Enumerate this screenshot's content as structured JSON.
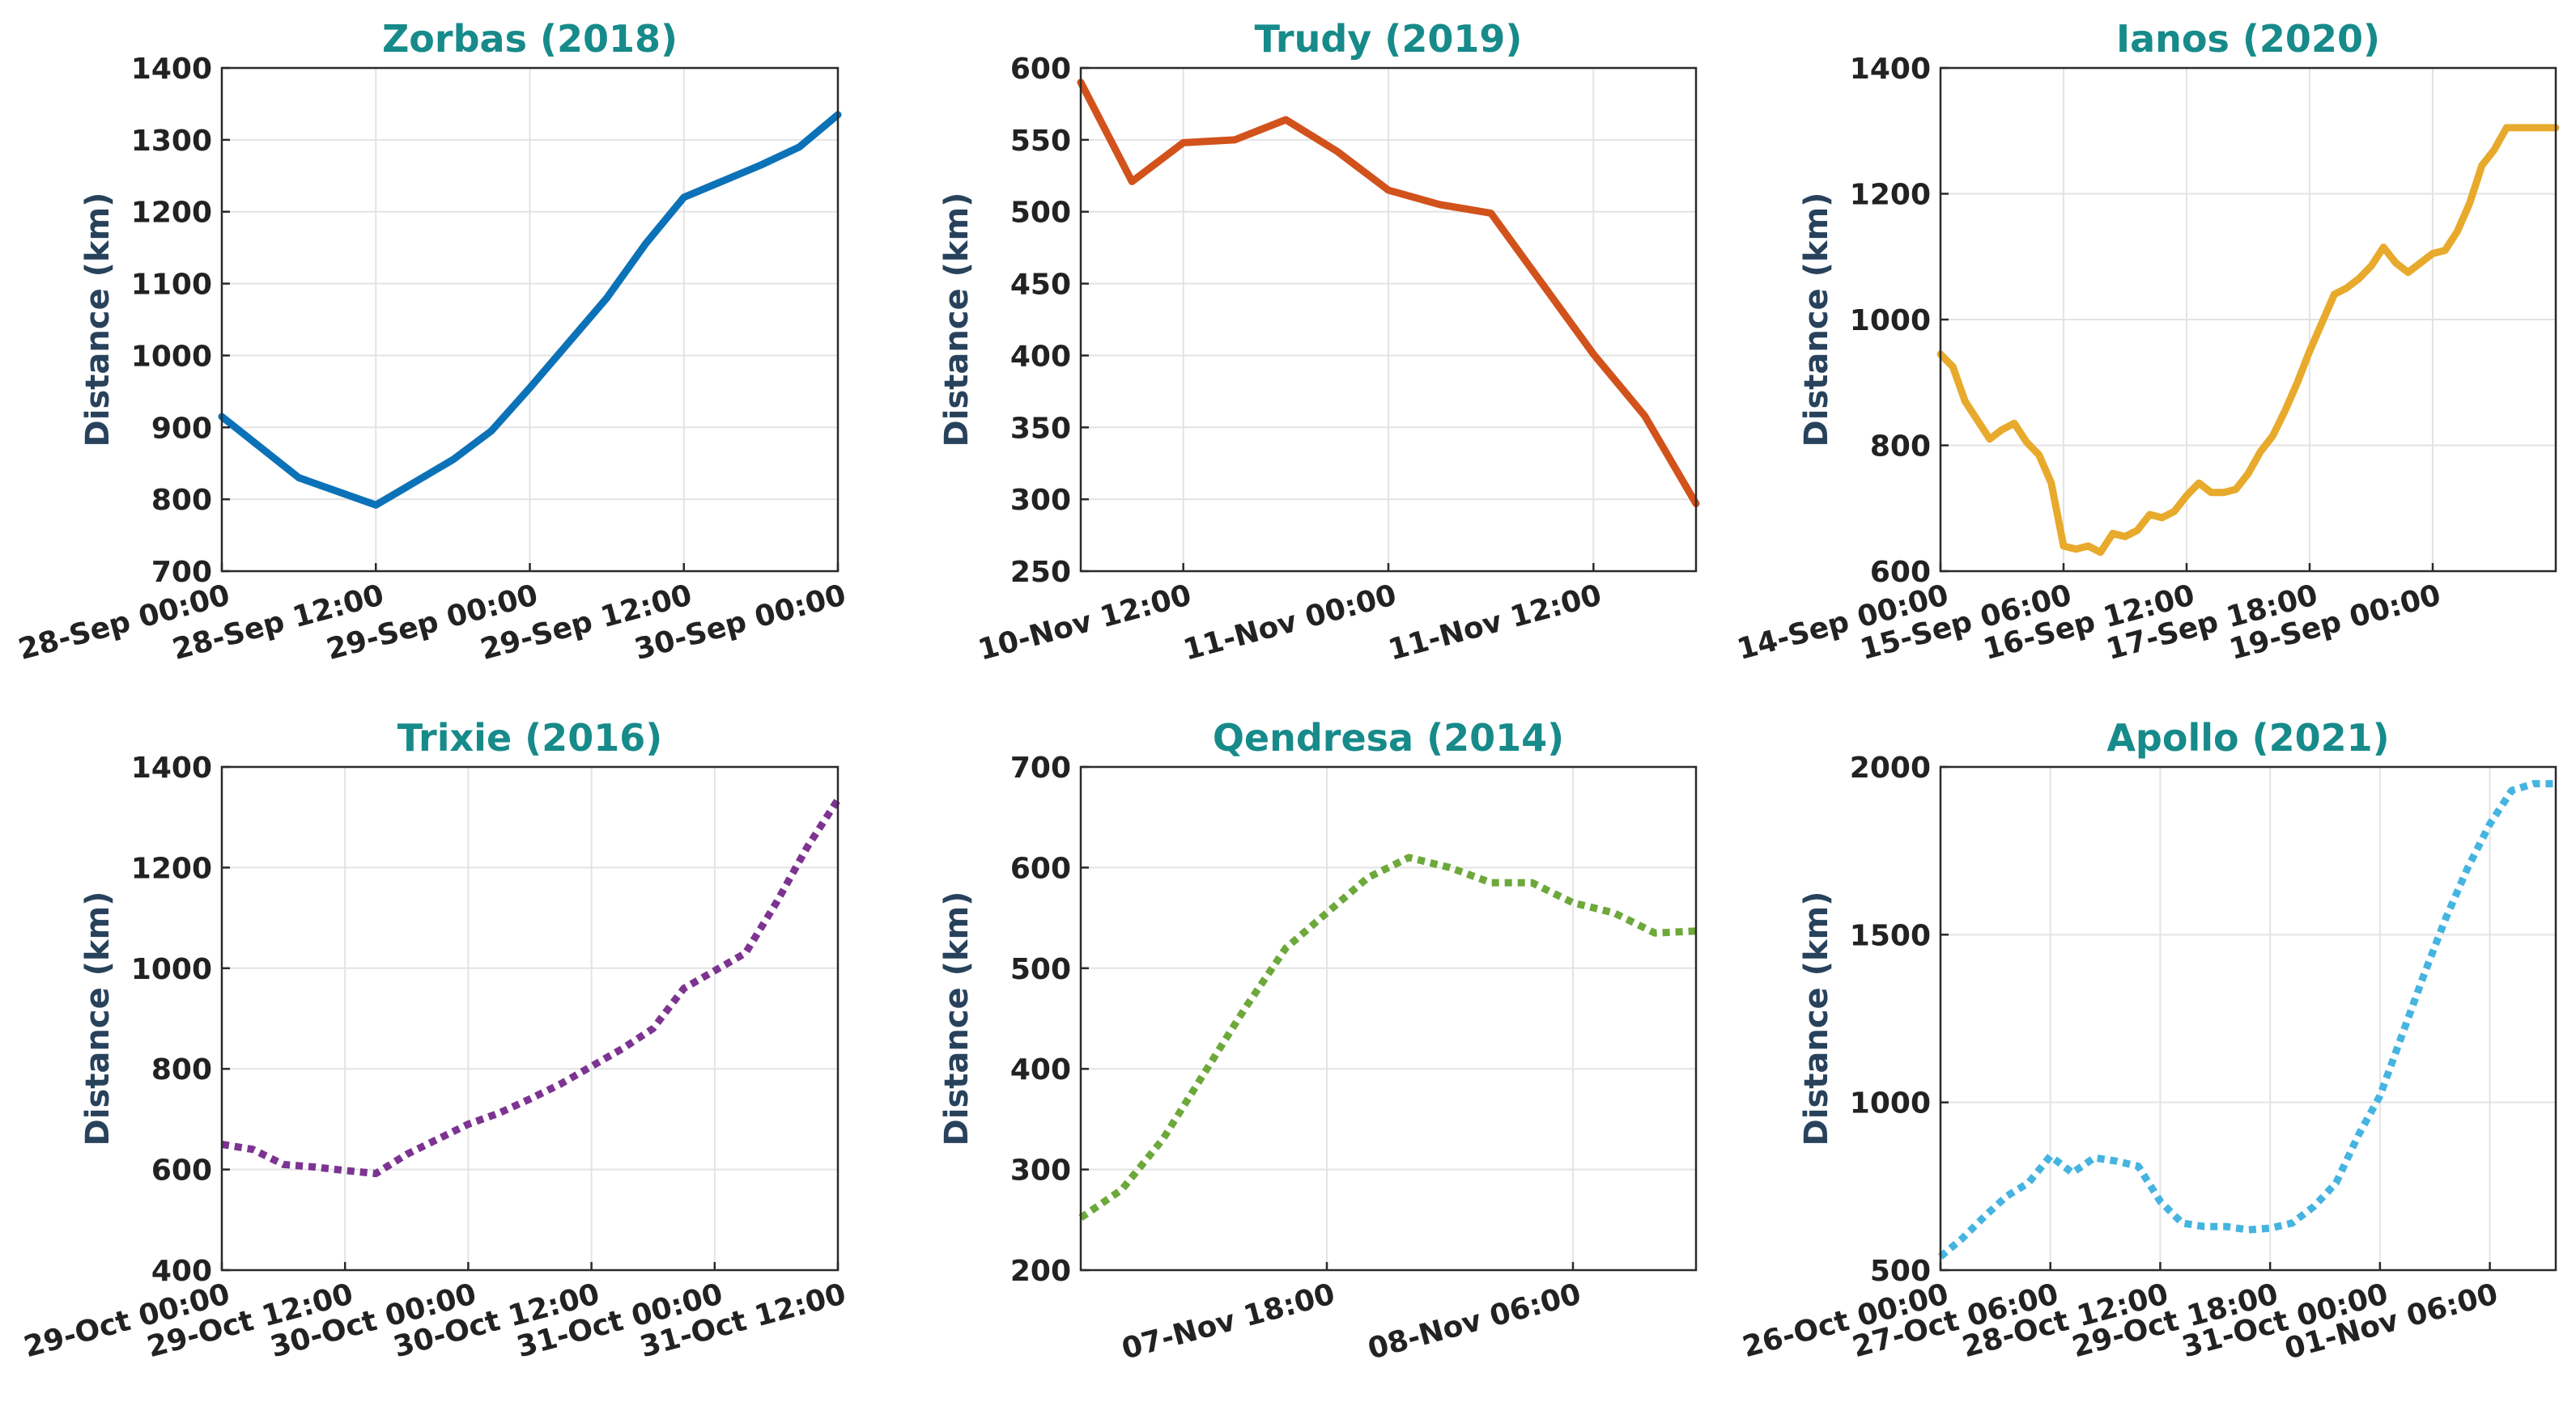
{
  "chart_data": [
    {
      "type": "line",
      "title": "Zorbas (2018)",
      "ylabel": "Distance (km)",
      "xlabel": "",
      "color": "#0b72b8",
      "line_style": "solid",
      "ylim": [
        700,
        1400
      ],
      "yticks": [
        700,
        800,
        900,
        1000,
        1100,
        1200,
        1300,
        1400
      ],
      "xlim": [
        "2018-09-28 00:00",
        "2018-09-30 00:00"
      ],
      "xticks": [
        "2018-09-28 00:00",
        "2018-09-28 12:00",
        "2018-09-29 00:00",
        "2018-09-29 12:00",
        "2018-09-30 00:00"
      ],
      "xtick_labels": [
        "28-Sep 00:00",
        "28-Sep 12:00",
        "29-Sep 00:00",
        "29-Sep 12:00",
        "30-Sep 00:00"
      ],
      "grid": true,
      "x": [
        "2018-09-28 00:00",
        "2018-09-28 06:00",
        "2018-09-28 12:00",
        "2018-09-28 18:00",
        "2018-09-28 21:00",
        "2018-09-29 00:00",
        "2018-09-29 06:00",
        "2018-09-29 09:00",
        "2018-09-29 12:00",
        "2018-09-29 18:00",
        "2018-09-29 21:00",
        "2018-09-30 00:00"
      ],
      "values": [
        915,
        830,
        792,
        855,
        895,
        955,
        1080,
        1155,
        1220,
        1265,
        1290,
        1335
      ]
    },
    {
      "type": "line",
      "title": "Trudy (2019)",
      "ylabel": "Distance (km)",
      "xlabel": "",
      "color": "#d2521c",
      "line_style": "solid",
      "ylim": [
        250,
        600
      ],
      "yticks": [
        250,
        300,
        350,
        400,
        450,
        500,
        550,
        600
      ],
      "xlim": [
        "2019-11-10 06:00",
        "2019-11-11 18:00"
      ],
      "xticks": [
        "2019-11-10 12:00",
        "2019-11-11 00:00",
        "2019-11-11 12:00"
      ],
      "xtick_labels": [
        "10-Nov 12:00",
        "11-Nov 00:00",
        "11-Nov 12:00"
      ],
      "grid": true,
      "x": [
        "2019-11-10 06:00",
        "2019-11-10 09:00",
        "2019-11-10 12:00",
        "2019-11-10 15:00",
        "2019-11-10 18:00",
        "2019-11-10 21:00",
        "2019-11-11 00:00",
        "2019-11-11 03:00",
        "2019-11-11 06:00",
        "2019-11-11 09:00",
        "2019-11-11 12:00",
        "2019-11-11 15:00",
        "2019-11-11 18:00"
      ],
      "values": [
        590,
        521,
        548,
        550,
        564,
        542,
        515,
        505,
        499,
        450,
        401,
        358,
        297
      ]
    },
    {
      "type": "line",
      "title": "Ianos (2020)",
      "ylabel": "Distance (km)",
      "xlabel": "",
      "color": "#e8aa2c",
      "line_style": "solid",
      "ylim": [
        600,
        1400
      ],
      "yticks": [
        600,
        800,
        1000,
        1200,
        1400
      ],
      "xlim": [
        "2020-09-14 00:00",
        "2020-09-20 06:00"
      ],
      "xticks": [
        "2020-09-14 00:00",
        "2020-09-15 06:00",
        "2020-09-16 12:00",
        "2020-09-17 18:00",
        "2020-09-19 00:00"
      ],
      "xtick_labels": [
        "14-Sep 00:00",
        "15-Sep 06:00",
        "16-Sep 12:00",
        "17-Sep 18:00",
        "19-Sep 00:00"
      ],
      "grid": true,
      "x": [
        "2020-09-14 00:00",
        "2020-09-14 03:00",
        "2020-09-14 06:00",
        "2020-09-14 09:00",
        "2020-09-14 12:00",
        "2020-09-14 15:00",
        "2020-09-14 18:00",
        "2020-09-14 21:00",
        "2020-09-15 00:00",
        "2020-09-15 03:00",
        "2020-09-15 06:00",
        "2020-09-15 09:00",
        "2020-09-15 12:00",
        "2020-09-15 15:00",
        "2020-09-15 18:00",
        "2020-09-15 21:00",
        "2020-09-16 00:00",
        "2020-09-16 03:00",
        "2020-09-16 06:00",
        "2020-09-16 09:00",
        "2020-09-16 12:00",
        "2020-09-16 15:00",
        "2020-09-16 18:00",
        "2020-09-16 21:00",
        "2020-09-17 00:00",
        "2020-09-17 03:00",
        "2020-09-17 06:00",
        "2020-09-17 09:00",
        "2020-09-17 12:00",
        "2020-09-17 15:00",
        "2020-09-17 18:00",
        "2020-09-17 21:00",
        "2020-09-18 00:00",
        "2020-09-18 03:00",
        "2020-09-18 06:00",
        "2020-09-18 09:00",
        "2020-09-18 12:00",
        "2020-09-18 15:00",
        "2020-09-18 18:00",
        "2020-09-18 21:00",
        "2020-09-19 00:00",
        "2020-09-19 03:00",
        "2020-09-19 06:00",
        "2020-09-19 09:00",
        "2020-09-19 12:00",
        "2020-09-19 15:00",
        "2020-09-19 18:00",
        "2020-09-19 21:00",
        "2020-09-20 00:00",
        "2020-09-20 03:00",
        "2020-09-20 06:00"
      ],
      "values": [
        945,
        925,
        870,
        840,
        810,
        825,
        835,
        805,
        785,
        740,
        640,
        635,
        640,
        630,
        660,
        655,
        665,
        690,
        685,
        695,
        720,
        740,
        725,
        725,
        730,
        755,
        790,
        815,
        855,
        900,
        950,
        995,
        1040,
        1050,
        1065,
        1085,
        1115,
        1090,
        1075,
        1090,
        1105,
        1110,
        1140,
        1185,
        1245,
        1270,
        1305,
        1305,
        1305,
        1305,
        1305
      ]
    },
    {
      "type": "line",
      "title": "Trixie (2016)",
      "ylabel": "Distance (km)",
      "xlabel": "",
      "color": "#7d3391",
      "line_style": "dotted",
      "ylim": [
        400,
        1400
      ],
      "yticks": [
        400,
        600,
        800,
        1000,
        1200,
        1400
      ],
      "xlim": [
        "2016-10-29 00:00",
        "2016-10-31 12:00"
      ],
      "xticks": [
        "2016-10-29 00:00",
        "2016-10-29 12:00",
        "2016-10-30 00:00",
        "2016-10-30 12:00",
        "2016-10-31 00:00",
        "2016-10-31 12:00"
      ],
      "xtick_labels": [
        "29-Oct 00:00",
        "29-Oct 12:00",
        "30-Oct 00:00",
        "30-Oct 12:00",
        "31-Oct 00:00",
        "31-Oct 12:00"
      ],
      "grid": true,
      "x": [
        "2016-10-29 00:00",
        "2016-10-29 03:00",
        "2016-10-29 06:00",
        "2016-10-29 09:00",
        "2016-10-29 12:00",
        "2016-10-29 15:00",
        "2016-10-29 18:00",
        "2016-10-29 21:00",
        "2016-10-30 00:00",
        "2016-10-30 03:00",
        "2016-10-30 06:00",
        "2016-10-30 09:00",
        "2016-10-30 12:00",
        "2016-10-30 15:00",
        "2016-10-30 18:00",
        "2016-10-30 21:00",
        "2016-10-31 00:00",
        "2016-10-31 03:00",
        "2016-10-31 06:00",
        "2016-10-31 09:00",
        "2016-10-31 12:00"
      ],
      "values": [
        650,
        640,
        610,
        605,
        598,
        592,
        630,
        660,
        690,
        712,
        740,
        770,
        805,
        840,
        880,
        960,
        995,
        1030,
        1130,
        1240,
        1335
      ]
    },
    {
      "type": "line",
      "title": "Qendresa (2014)",
      "ylabel": "Distance (km)",
      "xlabel": "",
      "color": "#6da83a",
      "line_style": "dotted",
      "ylim": [
        200,
        700
      ],
      "yticks": [
        200,
        300,
        400,
        500,
        600,
        700
      ],
      "xlim": [
        "2014-11-07 06:00",
        "2014-11-08 12:00"
      ],
      "xticks": [
        "2014-11-07 18:00",
        "2014-11-08 06:00"
      ],
      "xtick_labels": [
        "07-Nov 18:00",
        "08-Nov 06:00"
      ],
      "grid": true,
      "x": [
        "2014-11-07 06:00",
        "2014-11-07 08:00",
        "2014-11-07 10:00",
        "2014-11-07 12:00",
        "2014-11-07 14:00",
        "2014-11-07 16:00",
        "2014-11-07 18:00",
        "2014-11-07 20:00",
        "2014-11-07 22:00",
        "2014-11-08 00:00",
        "2014-11-08 02:00",
        "2014-11-08 04:00",
        "2014-11-08 06:00",
        "2014-11-08 08:00",
        "2014-11-08 10:00",
        "2014-11-08 12:00"
      ],
      "values": [
        252,
        280,
        330,
        395,
        460,
        520,
        555,
        590,
        610,
        600,
        585,
        585,
        565,
        555,
        535,
        537
      ]
    },
    {
      "type": "line",
      "title": "Apollo (2021)",
      "ylabel": "Distance (km)",
      "xlabel": "",
      "color": "#45b4e0",
      "line_style": "dotted",
      "ylim": [
        500,
        2000
      ],
      "yticks": [
        500,
        1000,
        1500,
        2000
      ],
      "xlim": [
        "2021-10-26 00:00",
        "2021-11-02 00:00"
      ],
      "xticks": [
        "2021-10-26 00:00",
        "2021-10-27 06:00",
        "2021-10-28 12:00",
        "2021-10-29 18:00",
        "2021-10-31 00:00",
        "2021-11-01 06:00"
      ],
      "xtick_labels": [
        "26-Oct 00:00",
        "27-Oct 06:00",
        "28-Oct 12:00",
        "29-Oct 18:00",
        "31-Oct 00:00",
        "01-Nov 06:00"
      ],
      "grid": true,
      "x": [
        "2021-10-26 00:00",
        "2021-10-26 06:00",
        "2021-10-26 12:00",
        "2021-10-26 18:00",
        "2021-10-27 00:00",
        "2021-10-27 06:00",
        "2021-10-27 12:00",
        "2021-10-27 18:00",
        "2021-10-28 00:00",
        "2021-10-28 06:00",
        "2021-10-28 12:00",
        "2021-10-28 18:00",
        "2021-10-29 00:00",
        "2021-10-29 06:00",
        "2021-10-29 12:00",
        "2021-10-29 18:00",
        "2021-10-30 00:00",
        "2021-10-30 06:00",
        "2021-10-30 12:00",
        "2021-10-30 18:00",
        "2021-10-31 00:00",
        "2021-10-31 06:00",
        "2021-10-31 12:00",
        "2021-10-31 18:00",
        "2021-11-01 00:00",
        "2021-11-01 06:00",
        "2021-11-01 12:00",
        "2021-11-01 18:00",
        "2021-11-02 00:00"
      ],
      "values": [
        540,
        595,
        660,
        720,
        760,
        840,
        790,
        835,
        825,
        810,
        705,
        640,
        630,
        630,
        620,
        625,
        640,
        690,
        760,
        900,
        1020,
        1200,
        1380,
        1550,
        1700,
        1830,
        1930,
        1950,
        1950
      ]
    }
  ]
}
